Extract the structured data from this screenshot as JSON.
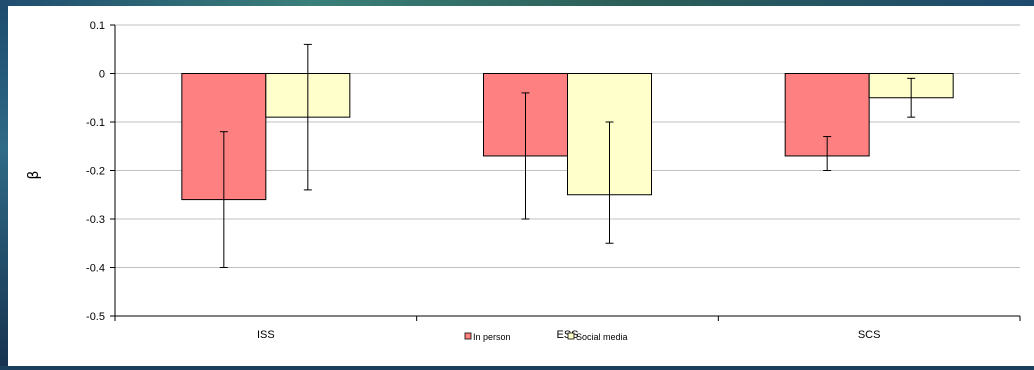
{
  "chart_data": {
    "type": "bar",
    "title": "",
    "xlabel": "",
    "ylabel": "β",
    "ylim": [
      -0.5,
      0.1
    ],
    "yticks": [
      0.1,
      0,
      -0.1,
      -0.2,
      -0.3,
      -0.4,
      -0.5
    ],
    "ytick_labels": [
      "0.1",
      "0",
      "-0.1",
      "-0.2",
      "-0.3",
      "-0.4",
      "-0.5"
    ],
    "grid": true,
    "legend_position": "bottom",
    "categories": [
      "ISS",
      "ESS",
      "SCS"
    ],
    "series": [
      {
        "name": "In person",
        "color": "#ff8080",
        "values": [
          -0.26,
          -0.17,
          -0.17
        ],
        "error_low": [
          -0.4,
          -0.3,
          -0.2
        ],
        "error_high": [
          -0.12,
          -0.04,
          -0.13
        ]
      },
      {
        "name": "Social media",
        "color": "#ffffcc",
        "values": [
          -0.09,
          -0.25,
          -0.05
        ],
        "error_low": [
          -0.24,
          -0.35,
          -0.09
        ],
        "error_high": [
          0.06,
          -0.1,
          -0.01
        ]
      }
    ]
  }
}
